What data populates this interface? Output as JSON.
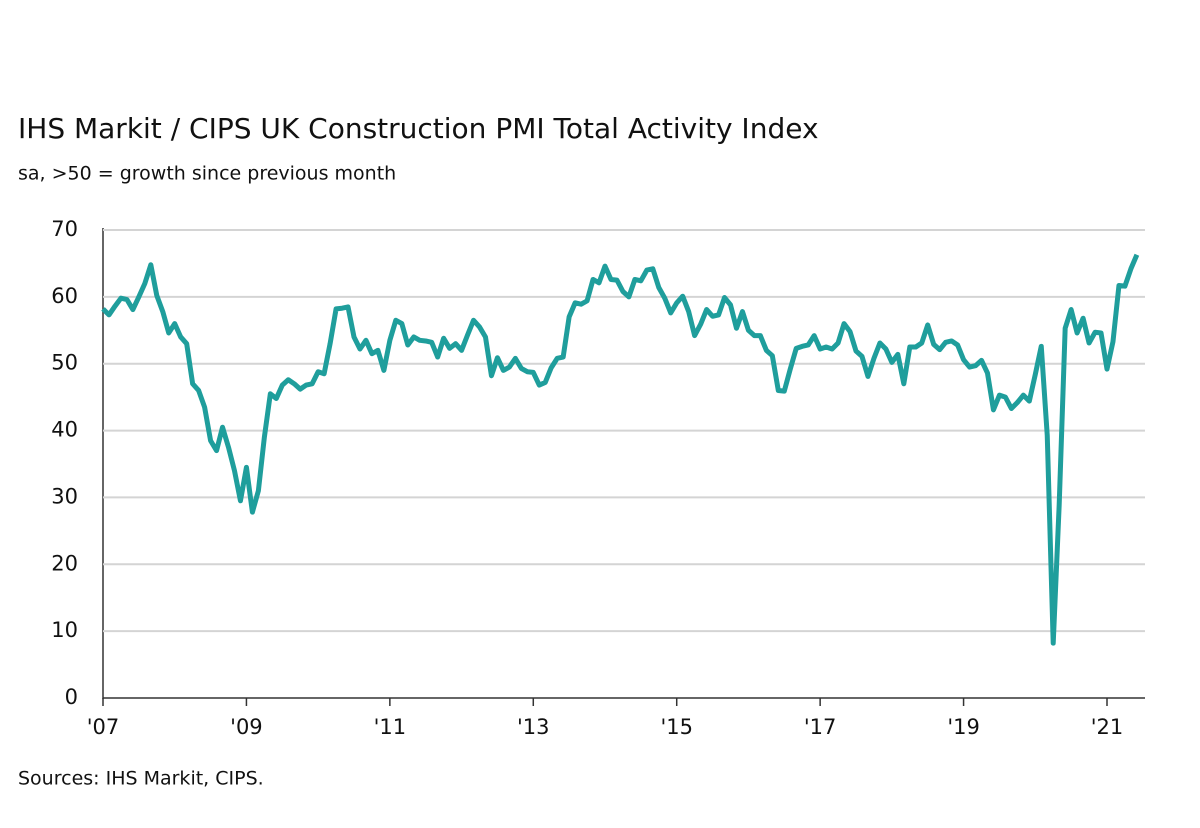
{
  "chart_data": {
    "type": "line",
    "title": "IHS Markit / CIPS UK Construction PMI Total Activity Index",
    "subtitle": "sa, >50 = growth since previous month",
    "source": "Sources: IHS Markit, CIPS.",
    "categories": [
      "'07",
      null,
      null,
      null,
      null,
      null,
      null,
      null,
      null,
      null,
      null,
      null,
      null,
      null,
      null,
      null,
      null,
      null,
      null,
      null,
      null,
      null,
      null,
      null,
      "'09",
      null,
      null,
      null,
      null,
      null,
      null,
      null,
      null,
      null,
      null,
      null,
      null,
      null,
      null,
      null,
      null,
      null,
      null,
      null,
      null,
      null,
      null,
      null,
      "'11",
      null,
      null,
      null,
      null,
      null,
      null,
      null,
      null,
      null,
      null,
      null,
      null,
      null,
      null,
      null,
      null,
      null,
      null,
      null,
      null,
      null,
      null,
      null,
      "'13",
      null,
      null,
      null,
      null,
      null,
      null,
      null,
      null,
      null,
      null,
      null,
      null,
      null,
      null,
      null,
      null,
      null,
      null,
      null,
      null,
      null,
      null,
      null,
      "'15",
      null,
      null,
      null,
      null,
      null,
      null,
      null,
      null,
      null,
      null,
      null,
      null,
      null,
      null,
      null,
      null,
      null,
      null,
      null,
      null,
      null,
      null,
      null,
      "'17",
      null,
      null,
      null,
      null,
      null,
      null,
      null,
      null,
      null,
      null,
      null,
      null,
      null,
      null,
      null,
      null,
      null,
      null,
      null,
      null,
      null,
      null,
      null,
      "'19",
      null,
      null,
      null,
      null,
      null,
      null,
      null,
      null,
      null,
      null,
      null,
      null,
      null,
      null,
      null,
      null,
      null,
      null,
      null,
      null,
      null,
      null,
      null,
      "'21",
      null,
      null,
      null,
      null,
      null
    ],
    "series": [
      {
        "name": "Total Activity Index",
        "color": "#1f9e9c",
        "values": [
          58.2,
          57.3,
          58.6,
          59.8,
          59.6,
          58.1,
          60.0,
          62.0,
          64.8,
          60.2,
          57.8,
          54.6,
          56.0,
          54.0,
          53.0,
          47.0,
          46.0,
          43.5,
          38.5,
          37.0,
          40.5,
          37.5,
          34.0,
          29.5,
          34.5,
          27.8,
          31.0,
          39.0,
          45.5,
          44.8,
          46.8,
          47.6,
          47.0,
          46.2,
          46.8,
          47.0,
          48.8,
          48.5,
          53.0,
          58.2,
          58.3,
          58.5,
          54.0,
          52.2,
          53.5,
          51.5,
          52.0,
          49.0,
          53.5,
          56.5,
          56.0,
          52.8,
          54.0,
          53.5,
          53.4,
          53.2,
          51.0,
          53.8,
          52.3,
          53.0,
          52.0,
          54.3,
          56.5,
          55.5,
          54.0,
          48.2,
          50.9,
          49.0,
          49.5,
          50.8,
          49.3,
          48.8,
          48.7,
          46.8,
          47.2,
          49.4,
          50.8,
          51.0,
          57.0,
          59.1,
          58.9,
          59.4,
          62.6,
          62.1,
          64.6,
          62.6,
          62.5,
          60.8,
          60.0,
          62.6,
          62.4,
          64.0,
          64.2,
          61.4,
          59.8,
          57.6,
          59.1,
          60.1,
          57.8,
          54.2,
          55.9,
          58.1,
          57.1,
          57.3,
          59.9,
          58.8,
          55.3,
          57.8,
          55.0,
          54.2,
          54.2,
          52.0,
          51.2,
          46.0,
          45.9,
          49.2,
          52.3,
          52.6,
          52.8,
          54.2,
          52.2,
          52.5,
          52.2,
          53.1,
          56.0,
          54.8,
          51.9,
          51.1,
          48.1,
          50.8,
          53.1,
          52.2,
          50.2,
          51.4,
          47.0,
          52.5,
          52.5,
          53.1,
          55.8,
          52.9,
          52.1,
          53.2,
          53.4,
          52.8,
          50.6,
          49.5,
          49.7,
          50.5,
          48.6,
          43.1,
          45.3,
          45.0,
          43.3,
          44.2,
          45.3,
          44.4,
          48.4,
          52.6,
          39.3,
          8.2,
          28.9,
          55.3,
          58.1,
          54.6,
          56.8,
          53.1,
          54.7,
          54.6,
          49.2,
          53.3,
          61.7,
          61.6,
          64.2,
          66.3
        ]
      }
    ],
    "ylim": [
      0,
      70
    ],
    "yticks": [
      0,
      10,
      20,
      30,
      40,
      50,
      60,
      70
    ],
    "grid": true
  }
}
